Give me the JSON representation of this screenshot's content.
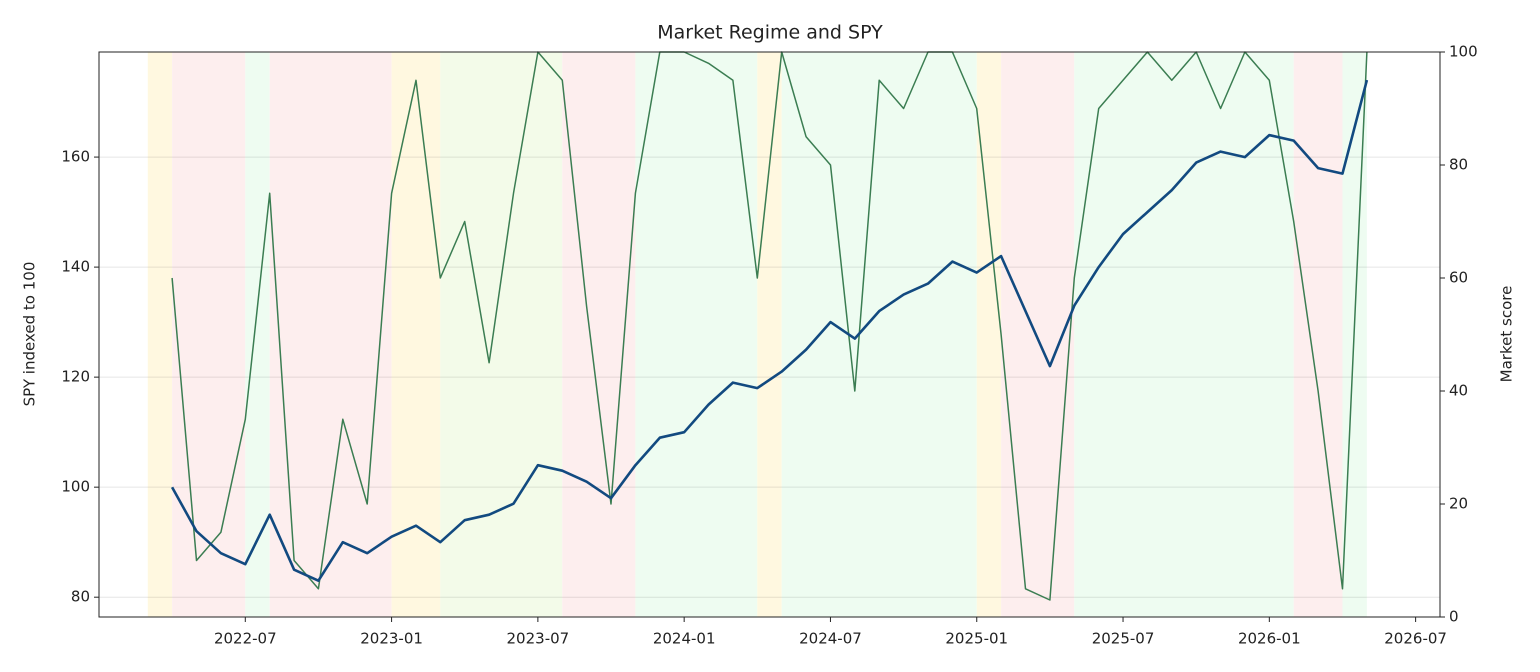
{
  "chart_data": {
    "type": "line",
    "title": "Market Regime and SPY",
    "ylabel": "SPY indexed to 100",
    "y2label": "Market score",
    "x": [
      "2022-04",
      "2022-05",
      "2022-06",
      "2022-07",
      "2022-08",
      "2022-09",
      "2022-10",
      "2022-11",
      "2022-12",
      "2023-01",
      "2023-02",
      "2023-03",
      "2023-04",
      "2023-05",
      "2023-06",
      "2023-07",
      "2023-08",
      "2023-09",
      "2023-10",
      "2023-11",
      "2023-12",
      "2024-01",
      "2024-02",
      "2024-03",
      "2024-04",
      "2024-05",
      "2024-06",
      "2024-07",
      "2024-08",
      "2024-09",
      "2024-10",
      "2024-11",
      "2024-12",
      "2025-01",
      "2025-02",
      "2025-03",
      "2025-04",
      "2025-05",
      "2025-06",
      "2025-07",
      "2025-08",
      "2025-09",
      "2025-10",
      "2025-11",
      "2025-12",
      "2026-01",
      "2026-02",
      "2026-03",
      "2026-04",
      "2026-05"
    ],
    "series": [
      {
        "name": "Market score",
        "color": "#3b7d52",
        "axis": "y2",
        "values": [
          60,
          10,
          15,
          35,
          75,
          10,
          5,
          35,
          20,
          75,
          95,
          60,
          70,
          45,
          75,
          100,
          95,
          55,
          20,
          75,
          100,
          100,
          98,
          95,
          60,
          100,
          85,
          80,
          40,
          95,
          90,
          100,
          100,
          90,
          50,
          5,
          3,
          60,
          90,
          95,
          100,
          95,
          100,
          90,
          100,
          95,
          70,
          40,
          5,
          100
        ]
      },
      {
        "name": "SPY",
        "color": "#124a80",
        "values": [
          100,
          92,
          88,
          86,
          95,
          85,
          83,
          90,
          88,
          91,
          93,
          90,
          94,
          95,
          97,
          104,
          103,
          101,
          98,
          104,
          109,
          110,
          115,
          119,
          118,
          121,
          125,
          130,
          127,
          132,
          135,
          137,
          141,
          139,
          142,
          132,
          122,
          133,
          140,
          146,
          150,
          154,
          159,
          161,
          160,
          164,
          163,
          158,
          157,
          174
        ]
      }
    ],
    "regimes": [
      {
        "start": "2022-03",
        "end": "2022-04",
        "color": "#fff8e0"
      },
      {
        "start": "2022-04",
        "end": "2022-07",
        "color": "#fdeeee"
      },
      {
        "start": "2022-07",
        "end": "2022-08",
        "color": "#eefcf1"
      },
      {
        "start": "2022-08",
        "end": "2023-01",
        "color": "#fdeeee"
      },
      {
        "start": "2023-01",
        "end": "2023-03",
        "color": "#fff8e0"
      },
      {
        "start": "2023-03",
        "end": "2023-08",
        "color": "#f3fbe9"
      },
      {
        "start": "2023-08",
        "end": "2023-11",
        "color": "#fdeeee"
      },
      {
        "start": "2023-11",
        "end": "2024-04",
        "color": "#eefcf1"
      },
      {
        "start": "2024-04",
        "end": "2024-05",
        "color": "#fff8e0"
      },
      {
        "start": "2024-05",
        "end": "2025-01",
        "color": "#eefcf1"
      },
      {
        "start": "2025-01",
        "end": "2025-02",
        "color": "#fff8e0"
      },
      {
        "start": "2025-02",
        "end": "2025-05",
        "color": "#fdeeee"
      },
      {
        "start": "2025-05",
        "end": "2026-02",
        "color": "#eefcf1"
      },
      {
        "start": "2026-02",
        "end": "2026-04",
        "color": "#fdeeee"
      },
      {
        "start": "2026-04",
        "end": "2026-05",
        "color": "#eefcf1"
      }
    ],
    "xlim": [
      "2022-01",
      "2026-08"
    ],
    "xticks": [
      "2022-07",
      "2023-01",
      "2023-07",
      "2024-01",
      "2024-07",
      "2025-01",
      "2025-07",
      "2026-01",
      "2026-07"
    ],
    "ylim": [
      76.4,
      179.1
    ],
    "yticks": [
      80,
      100,
      120,
      140,
      160
    ],
    "y2lim": [
      0,
      100
    ],
    "y2ticks": [
      0,
      20,
      40,
      60,
      80,
      100
    ],
    "grid": true
  }
}
